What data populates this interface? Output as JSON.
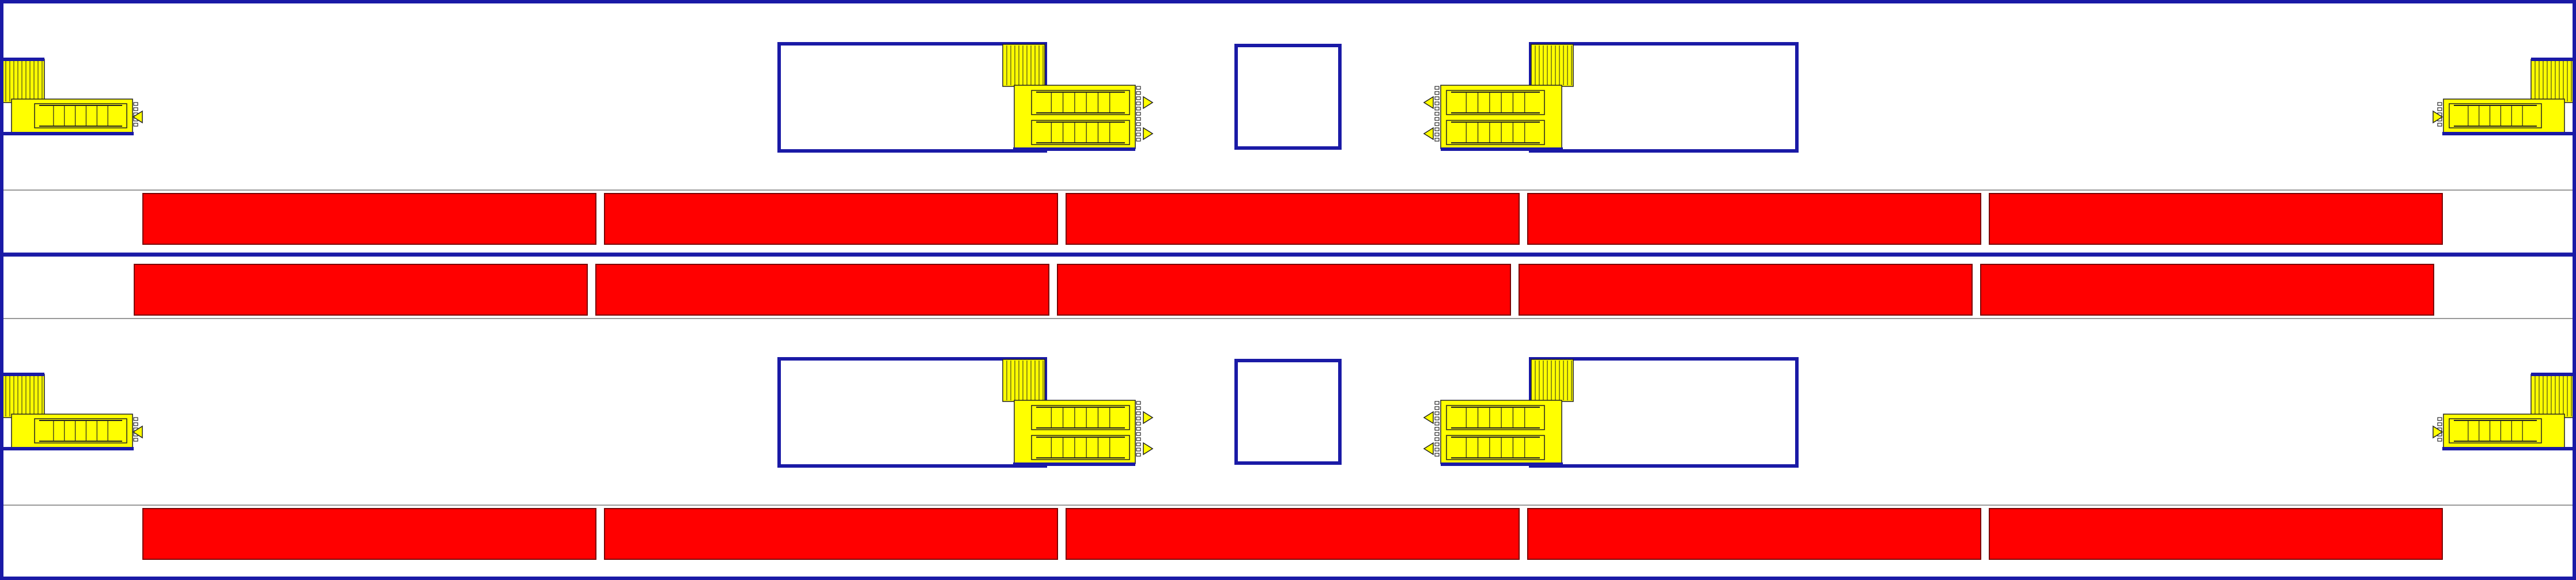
{
  "diagram": {
    "kind": "station-track-layout",
    "colors": {
      "background": "#ffffff",
      "outline": "#1a1aa6",
      "train_car": "#ff0000",
      "train_car_border": "#7a0000",
      "platform_line": "#999999",
      "stair_fill": "#ffff00",
      "stair_stroke": "#222222",
      "ticket_gate_mark": "#000000"
    },
    "levels": [
      {
        "name": "upper-level",
        "concourse_boxes": [
          "left-concourse-box",
          "center-room-box",
          "right-concourse-box"
        ],
        "stair_groups": [
          "far-left-stairs",
          "center-left-stairs",
          "center-right-stairs",
          "far-right-stairs"
        ],
        "train": {
          "direction": "track-1",
          "car_count": 5
        }
      },
      {
        "name": "middle-train",
        "train": {
          "direction": "track-2",
          "car_count": 5
        }
      },
      {
        "name": "lower-level",
        "concourse_boxes": [
          "left-concourse-box",
          "center-room-box",
          "right-concourse-box"
        ],
        "stair_groups": [
          "far-left-stairs",
          "center-left-stairs",
          "center-right-stairs",
          "far-right-stairs"
        ],
        "train": {
          "direction": "track-3",
          "car_count": 5
        }
      }
    ]
  }
}
